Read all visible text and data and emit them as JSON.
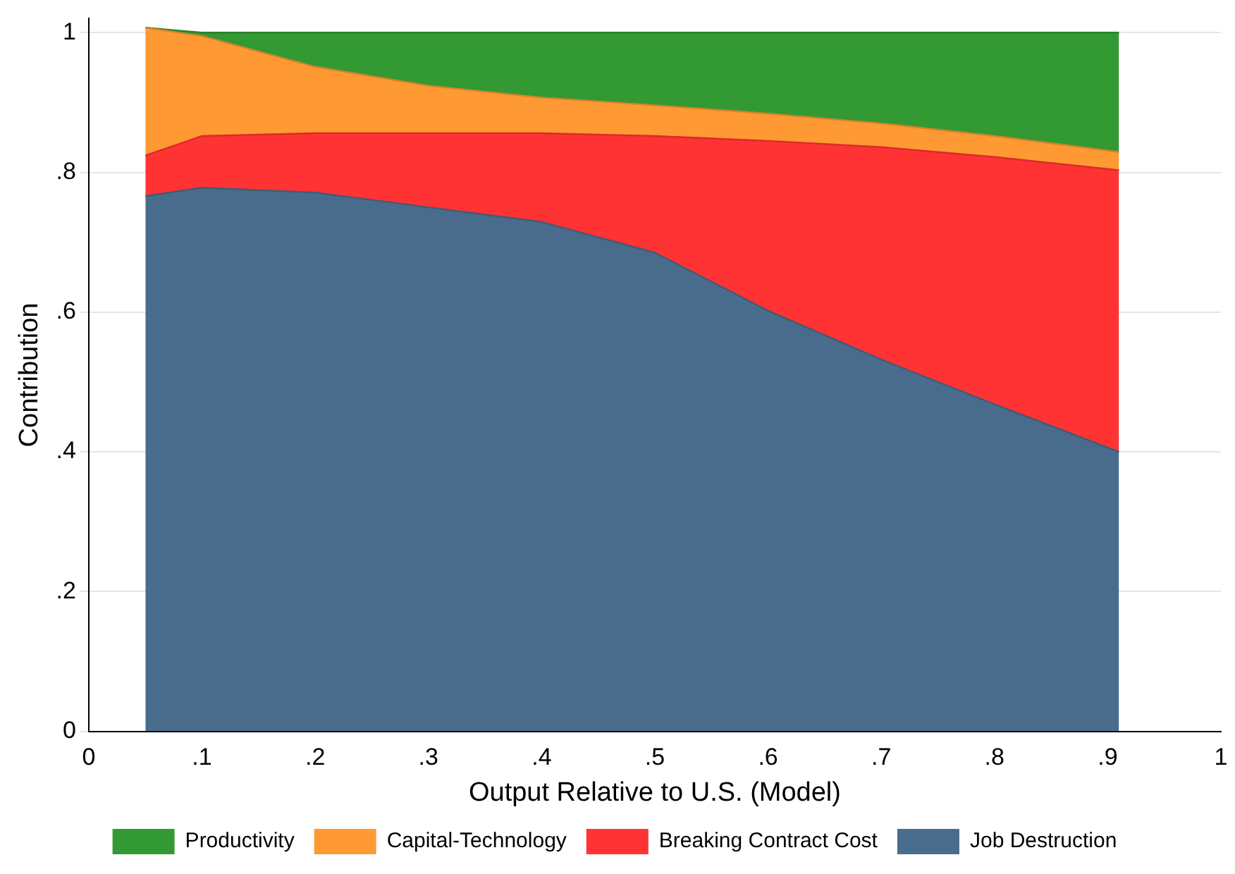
{
  "chart_data": {
    "type": "area",
    "stacked": true,
    "xlabel": "Output Relative to U.S. (Model)",
    "ylabel": "Contribution",
    "x": [
      0.05,
      0.1,
      0.2,
      0.3,
      0.4,
      0.5,
      0.6,
      0.7,
      0.8,
      0.91
    ],
    "series": [
      {
        "name": "Job Destruction",
        "color": "#4a6c8c",
        "values": [
          0.766,
          0.778,
          0.771,
          0.75,
          0.729,
          0.685,
          0.602,
          0.532,
          0.468,
          0.4
        ]
      },
      {
        "name": "Breaking Contract Cost",
        "color": "#ff3333",
        "values": [
          0.058,
          0.074,
          0.085,
          0.106,
          0.127,
          0.167,
          0.243,
          0.304,
          0.354,
          0.403
        ]
      },
      {
        "name": "Capital-Technology",
        "color": "#ff9933",
        "values": [
          0.183,
          0.143,
          0.095,
          0.068,
          0.051,
          0.044,
          0.039,
          0.034,
          0.03,
          0.026
        ]
      },
      {
        "name": "Productivity",
        "color": "#339933",
        "values": [
          0,
          0.005,
          0.049,
          0.076,
          0.093,
          0.104,
          0.116,
          0.13,
          0.148,
          0.171
        ]
      }
    ],
    "xlim": [
      0,
      1
    ],
    "xticks": [
      0,
      {
        "value": 0.1,
        "label": ".1"
      },
      {
        "value": 0.2,
        "label": ".2"
      },
      {
        "value": 0.3,
        "label": ".3"
      },
      {
        "value": 0.4,
        "label": ".4"
      },
      {
        "value": 0.5,
        "label": ".5"
      },
      {
        "value": 0.6,
        "label": ".6"
      },
      {
        "value": 0.7,
        "label": ".7"
      },
      {
        "value": 0.8,
        "label": ".8"
      },
      {
        "value": 0.9,
        "label": ".9"
      },
      1
    ],
    "ylim": [
      0,
      1.02
    ],
    "yticks": [
      0,
      {
        "value": 0.2,
        "label": ".2"
      },
      {
        "value": 0.4,
        "label": ".4"
      },
      {
        "value": 0.6,
        "label": ".6"
      },
      {
        "value": 0.8,
        "label": ".8"
      },
      1
    ],
    "grid": "y",
    "legend": "bottom"
  }
}
